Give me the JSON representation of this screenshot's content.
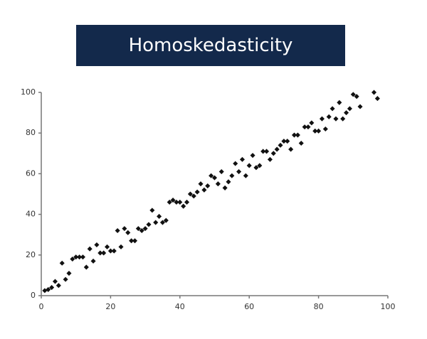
{
  "chart_data": {
    "type": "scatter",
    "title": "Homoskedasticity",
    "color": "#111111",
    "x": [
      1,
      2,
      3,
      4,
      5,
      6,
      7,
      8,
      9,
      10,
      11,
      12,
      13,
      14,
      15,
      16,
      17,
      18,
      19,
      20,
      21,
      22,
      23,
      24,
      25,
      26,
      27,
      28,
      29,
      30,
      31,
      32,
      33,
      34,
      35,
      36,
      37,
      38,
      39,
      40,
      41,
      42,
      43,
      44,
      45,
      46,
      47,
      48,
      49,
      50,
      51,
      52,
      53,
      54,
      55,
      56,
      57,
      58,
      59,
      60,
      61,
      62,
      63,
      64,
      65,
      66,
      67,
      68,
      69,
      70,
      71,
      72,
      73,
      74,
      75,
      76,
      77,
      78,
      79,
      80,
      81,
      82,
      83,
      84,
      85,
      86,
      87,
      88,
      89,
      90,
      91,
      92,
      96,
      97
    ],
    "values": [
      2.5,
      3,
      4,
      7,
      5,
      16,
      8,
      11,
      18,
      19,
      19,
      19,
      14,
      23,
      17,
      25,
      21,
      21,
      24,
      22,
      22,
      32,
      24,
      33,
      31,
      27,
      27,
      33,
      32,
      33,
      35,
      42,
      36,
      39,
      36,
      37,
      46,
      47,
      46,
      46,
      44,
      46,
      50,
      49,
      51,
      55,
      52,
      54,
      59,
      58,
      55,
      61,
      53,
      56,
      59,
      65,
      61,
      67,
      59,
      64,
      69,
      63,
      64,
      71,
      71,
      67,
      70,
      72,
      74,
      76,
      76,
      72,
      79,
      79,
      75,
      83,
      83,
      85,
      81,
      81,
      87,
      82,
      88,
      92,
      87,
      95,
      87,
      90,
      92,
      99,
      98,
      93,
      100,
      97
    ],
    "xlim": [
      0,
      100
    ],
    "ylim": [
      0,
      100
    ],
    "xticks": [
      0,
      20,
      40,
      60,
      80,
      100
    ],
    "yticks": [
      0,
      20,
      40,
      60,
      80,
      100
    ]
  }
}
